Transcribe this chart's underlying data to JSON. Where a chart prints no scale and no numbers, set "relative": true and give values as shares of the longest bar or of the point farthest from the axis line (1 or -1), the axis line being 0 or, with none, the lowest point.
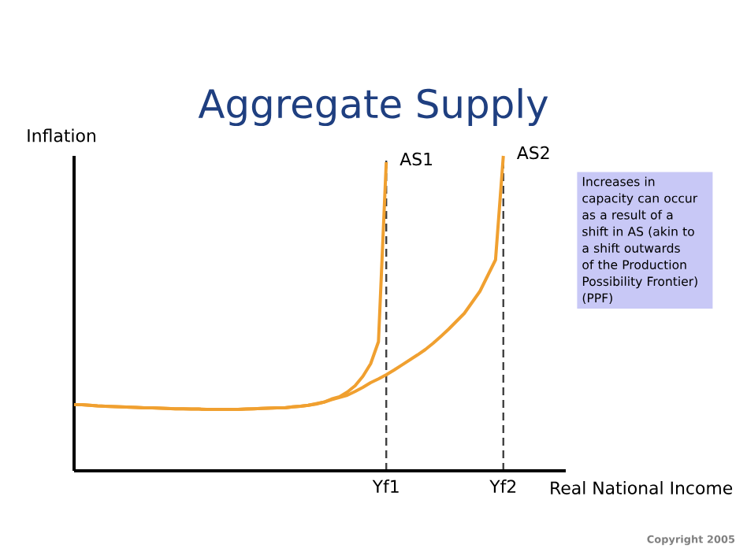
{
  "chart_data": {
    "type": "line",
    "title": "Aggregate Supply",
    "xlabel": "Real National Income",
    "ylabel": "Inflation",
    "relative": true,
    "tick_labels": "x",
    "marker": "none",
    "line_style": "solid",
    "grid": "x",
    "categories": [
      null,
      null,
      null,
      null,
      null,
      null,
      null,
      null,
      null,
      null,
      null,
      null,
      null,
      null,
      null,
      null,
      null,
      null,
      null,
      null,
      null,
      null,
      null,
      null,
      null,
      null,
      null,
      null,
      null,
      null,
      null,
      null,
      null,
      null,
      null,
      null,
      null,
      null,
      null,
      null,
      "Yf1",
      null,
      null,
      null,
      null,
      null,
      null,
      null,
      null,
      null,
      null,
      null,
      null,
      null,
      null,
      "Yf2",
      null,
      null,
      null,
      null,
      null,
      null,
      null,
      null
    ],
    "series": [
      {
        "name": "AS1",
        "color": "#f0a030",
        "values": [
          0.21,
          0.21,
          0.208,
          0.206,
          0.205,
          0.204,
          0.203,
          0.202,
          0.201,
          0.2,
          0.2,
          0.199,
          0.198,
          0.197,
          0.197,
          0.196,
          0.196,
          0.195,
          0.195,
          0.195,
          0.195,
          0.195,
          0.196,
          0.197,
          0.198,
          0.199,
          0.2,
          0.2,
          0.203,
          0.205,
          0.208,
          0.212,
          0.218,
          0.228,
          0.235,
          0.25,
          0.27,
          0.3,
          0.34,
          0.41,
          0.98,
          null,
          null,
          null,
          null,
          null,
          null,
          null,
          null,
          null,
          null,
          null,
          null,
          null,
          null,
          null,
          null,
          null,
          null,
          null,
          null,
          null,
          null,
          null
        ]
      },
      {
        "name": "AS2",
        "color": "#f0a030",
        "values": [
          0.21,
          0.21,
          0.208,
          0.206,
          0.205,
          0.204,
          0.203,
          0.202,
          0.201,
          0.2,
          0.2,
          0.199,
          0.198,
          0.197,
          0.197,
          0.196,
          0.196,
          0.195,
          0.195,
          0.195,
          0.195,
          0.195,
          0.196,
          0.197,
          0.198,
          0.199,
          0.2,
          0.2,
          0.203,
          0.205,
          0.208,
          0.213,
          0.218,
          0.226,
          0.233,
          0.24,
          0.252,
          0.265,
          0.28,
          0.292,
          0.305,
          0.32,
          0.336,
          0.352,
          0.368,
          0.385,
          0.405,
          0.427,
          0.45,
          0.475,
          0.5,
          0.535,
          0.57,
          0.62,
          0.67,
          1.0,
          null,
          null,
          null,
          null,
          null,
          null,
          null,
          null
        ]
      }
    ],
    "annotations": [
      "Increases in capacity can occur as a result of a shift in AS (akin to a shift outwards of the Production Possibility Frontier)  (PPF)",
      "Copyright 2005"
    ]
  }
}
